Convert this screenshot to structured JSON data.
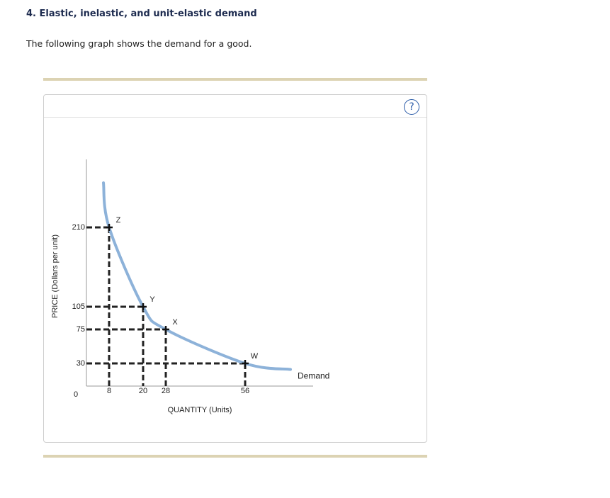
{
  "header": {
    "title": "4. Elastic, inelastic, and unit-elastic demand",
    "intro": "The following graph shows the demand for a good.",
    "help": "?"
  },
  "chart_data": {
    "type": "line",
    "x_label": "QUANTITY (Units)",
    "y_label": "PRICE (Dollars per unit)",
    "xlim": [
      0,
      80
    ],
    "ylim": [
      0,
      300
    ],
    "xticks": [
      8,
      20,
      28,
      56
    ],
    "yticks": [
      30,
      75,
      105,
      210
    ],
    "origin_label": 0,
    "series": [
      {
        "name": "Demand",
        "color": "#8db2d9",
        "x": [
          6,
          8,
          20,
          28,
          56,
          72
        ],
        "values": [
          269,
          210,
          105,
          75,
          30,
          22
        ]
      }
    ],
    "points": [
      {
        "label": "Z",
        "x": 8,
        "y": 210
      },
      {
        "label": "Y",
        "x": 20,
        "y": 105
      },
      {
        "label": "X",
        "x": 28,
        "y": 75
      },
      {
        "label": "W",
        "x": 56,
        "y": 30
      }
    ]
  }
}
